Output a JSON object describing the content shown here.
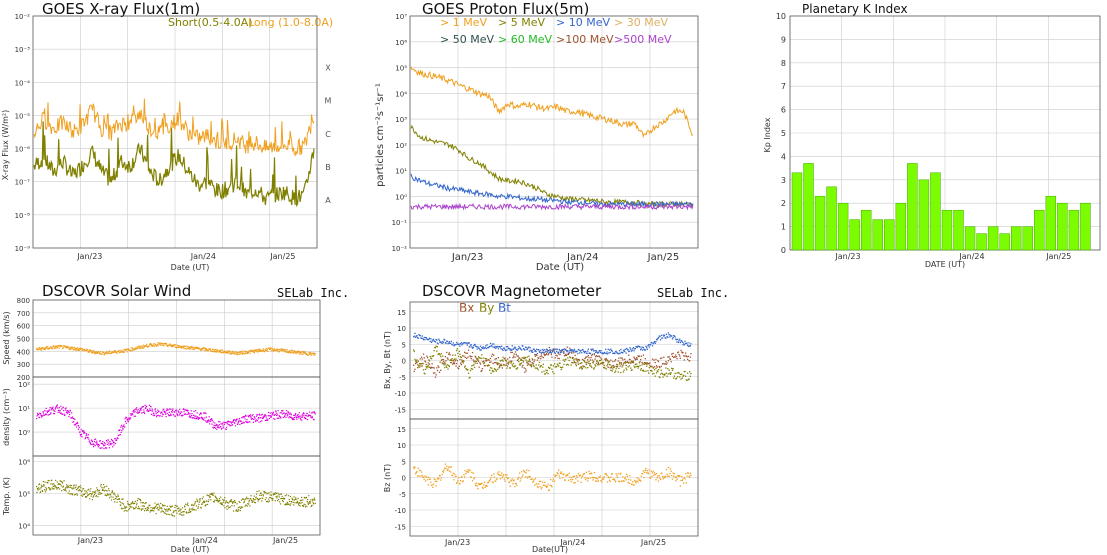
{
  "colors": {
    "orange": "#f0a020",
    "olive": "#808000",
    "blue": "#3366cc",
    "green": "#22bb22",
    "brown": "#a0522d",
    "magenta": "#dd00dd",
    "violet": "#aa44cc",
    "lightorange": "#e0b060",
    "darkslate": "#2f4f4f",
    "kp_bar": "#7cfc00",
    "kp_bar_edge": "#44aa00"
  },
  "xray": {
    "title": "GOES X-ray Flux(1m)",
    "ylabel": "X-ray Flux (W/m²)",
    "xlabel": "Date (UT)",
    "legend_short": "Short(0.5-4.0A)",
    "legend_long": "Long (1.0-8.0A)",
    "class_labels": [
      "X",
      "M",
      "C",
      "B",
      "A"
    ]
  },
  "proton": {
    "title": "GOES Proton Flux(5m)",
    "ylabel": "particles cm⁻²s⁻¹sr⁻¹",
    "xlabel": "Date (UT)",
    "legend": [
      {
        "label": "> 1 MeV",
        "color": "orange"
      },
      {
        "label": "> 5 MeV",
        "color": "olive"
      },
      {
        "label": "> 10 MeV",
        "color": "blue"
      },
      {
        "label": "> 30 MeV",
        "color": "lightorange"
      },
      {
        "label": "> 50 MeV",
        "color": "darkslate"
      },
      {
        "label": "> 60 MeV",
        "color": "green"
      },
      {
        "label": ">100 MeV",
        "color": "brown"
      },
      {
        "label": ">500 MeV",
        "color": "violet"
      }
    ]
  },
  "kp": {
    "title": "Planetary K Index",
    "ylabel": "Kp Index",
    "xlabel": "DATE (UT)"
  },
  "wind": {
    "title": "DSCOVR Solar Wind",
    "brand": "SELab Inc.",
    "speed_label": "Speed (km/s)",
    "density_label": "density (cm⁻³)",
    "temp_label": "Temp. (K)",
    "xlabel": "Date (UT)"
  },
  "mag": {
    "title": "DSCOVR Magnetometer",
    "brand": "SELab Inc.",
    "legend_bx": "Bx",
    "legend_by": "By",
    "legend_bt": "Bt",
    "top_label": "Bx, By, Bt (nT)",
    "bottom_label": "Bz (nT)",
    "xlabel": "Date(UT)"
  },
  "chart_data": [
    {
      "type": "line",
      "title": "GOES X-ray Flux(1m)",
      "xlabel": "Date (UT)",
      "ylabel": "X-ray Flux (W/m²)",
      "y_scale": "log",
      "ylim": [
        1e-09,
        0.01
      ],
      "y_ticks": [
        "10⁻⁹",
        "10⁻⁸",
        "10⁻⁷",
        "10⁻⁶",
        "10⁻⁵",
        "10⁻⁴",
        "10⁻³",
        "10⁻²"
      ],
      "x_ticks": [
        "Jan/23",
        "Jan/24",
        "Jan/25"
      ],
      "grid": true,
      "legend_position": "top-right",
      "series": [
        {
          "name": "Short(0.5-4.0A)",
          "color": "olive",
          "values": [
            3e-07,
            5e-07,
            2e-07,
            4e-07,
            1.5e-07,
            3e-07,
            8e-07,
            2e-07,
            1e-07,
            4e-07,
            3e-07,
            1e-06,
            2e-07,
            1e-07,
            3e-07,
            6e-07,
            2e-07,
            8e-08,
            1e-07,
            5e-08,
            6e-08,
            1e-07,
            4e-08,
            6e-08,
            3e-08,
            4e-08,
            5e-08,
            3e-08,
            4e-08,
            1e-06
          ]
        },
        {
          "name": "Long (1.0-8.0A)",
          "color": "orange",
          "values": [
            3e-06,
            8e-06,
            4e-06,
            6e-06,
            3e-06,
            5e-06,
            1.5e-05,
            4e-06,
            3e-06,
            6e-06,
            5e-06,
            1.2e-05,
            4e-06,
            3e-06,
            5e-06,
            8e-06,
            3e-06,
            2e-06,
            2.5e-06,
            1.5e-06,
            1.5e-06,
            2e-06,
            1.2e-06,
            1.5e-06,
            1e-06,
            1.2e-06,
            1.3e-06,
            1e-06,
            1.2e-06,
            1e-05
          ]
        }
      ]
    },
    {
      "type": "line",
      "title": "GOES Proton Flux(5m)",
      "xlabel": "Date (UT)",
      "ylabel": "particles cm⁻²s⁻¹sr⁻¹",
      "y_scale": "log",
      "ylim": [
        0.01,
        10000000.0
      ],
      "y_ticks": [
        "10⁻²",
        "10⁻¹",
        "10⁰",
        "10¹",
        "10²",
        "10³",
        "10⁴",
        "10⁵",
        "10⁶",
        "10⁷"
      ],
      "x_ticks": [
        "Jan/23",
        "Jan/24",
        "Jan/25"
      ],
      "grid": true,
      "series": [
        {
          "name": "> 1 MeV",
          "color": "orange",
          "values": [
            100000.0,
            60000.0,
            50000.0,
            40000.0,
            30000.0,
            20000.0,
            15000.0,
            10000.0,
            8000.0,
            2000.0,
            4000.0,
            3000.0,
            4000.0,
            3000.0,
            2500.0,
            3000.0,
            2000.0,
            2000.0,
            1500.0,
            1200.0,
            1000.0,
            800,
            600,
            700,
            200,
            500,
            800,
            2000.0,
            2000.0,
            250
          ]
        },
        {
          "name": "> 5 MeV",
          "color": "olive",
          "values": [
            500,
            200,
            150,
            120,
            100,
            60,
            30,
            20,
            10,
            5,
            4,
            4,
            3,
            2,
            1.2,
            1,
            0.8,
            0.8,
            0.7,
            0.7,
            0.6,
            0.6,
            0.6,
            0.6,
            0.5,
            0.5,
            0.5,
            0.5,
            0.5,
            0.5
          ]
        },
        {
          "name": "> 10 MeV",
          "color": "blue",
          "values": [
            6,
            4,
            3,
            2.5,
            2,
            1.8,
            1.5,
            1.3,
            1.2,
            1,
            1,
            0.9,
            0.8,
            0.8,
            0.7,
            0.7,
            0.6,
            0.6,
            0.6,
            0.5,
            0.5,
            0.5,
            0.5,
            0.5,
            0.5,
            0.5,
            0.5,
            0.5,
            0.5,
            0.5
          ]
        },
        {
          "name": ">500 MeV",
          "color": "violet",
          "values": [
            0.4,
            0.4,
            0.4,
            0.4,
            0.4,
            0.4,
            0.4,
            0.4,
            0.4,
            0.4,
            0.4,
            0.4,
            0.4,
            0.4,
            0.4,
            0.4,
            0.4,
            0.4,
            0.4,
            0.4,
            0.4,
            0.4,
            0.4,
            0.4,
            0.4,
            0.4,
            0.4,
            0.4,
            0.4,
            0.4
          ]
        }
      ]
    },
    {
      "type": "bar",
      "title": "Planetary K Index",
      "xlabel": "DATE (UT)",
      "ylabel": "Kp Index",
      "ylim": [
        0,
        10
      ],
      "y_ticks": [
        0,
        1,
        2,
        3,
        4,
        5,
        6,
        7,
        8,
        9,
        10
      ],
      "x_ticks": [
        "Jan/23",
        "Jan/24",
        "Jan/25"
      ],
      "grid": true,
      "values": [
        3.3,
        3.7,
        2.3,
        2.7,
        2.0,
        1.3,
        1.7,
        1.3,
        1.3,
        2.0,
        3.7,
        3.0,
        3.3,
        1.7,
        1.7,
        1.0,
        0.7,
        1.0,
        0.7,
        1.0,
        1.0,
        1.7,
        2.3,
        2.0,
        1.7,
        2.0
      ]
    },
    {
      "type": "scatter",
      "title": "DSCOVR Solar Wind",
      "xlabel": "Date (UT)",
      "x_ticks": [
        "Jan/23",
        "Jan/24",
        "Jan/25"
      ],
      "panels": [
        {
          "ylabel": "Speed (km/s)",
          "ylim": [
            200,
            800
          ],
          "y_ticks": [
            200,
            300,
            400,
            500,
            600,
            700,
            800
          ],
          "color": "orange",
          "values": [
            420,
            430,
            440,
            430,
            420,
            400,
            390,
            400,
            410,
            430,
            450,
            460,
            450,
            440,
            430,
            420,
            410,
            400,
            390,
            400,
            410,
            420,
            410,
            400,
            390,
            380
          ]
        },
        {
          "ylabel": "density (cm⁻³)",
          "y_scale": "log",
          "ylim": [
            0.1,
            200
          ],
          "y_ticks": [
            "10⁰",
            "10¹",
            "10²"
          ],
          "color": "magenta",
          "values": [
            5,
            8,
            10,
            6,
            1,
            0.4,
            0.3,
            0.4,
            3,
            8,
            10,
            6,
            7,
            7,
            6,
            5,
            2,
            2,
            3,
            4,
            4,
            5,
            6,
            5,
            5,
            5
          ]
        },
        {
          "ylabel": "Temp. (K)",
          "y_scale": "log",
          "ylim": [
            5000,
            1500000
          ],
          "y_ticks": [
            "10⁴",
            "10⁵",
            "10⁶"
          ],
          "color": "olive",
          "values": [
            150000,
            180000,
            200000,
            150000,
            120000,
            100000,
            150000,
            80000,
            40000,
            50000,
            40000,
            35000,
            30000,
            30000,
            40000,
            60000,
            80000,
            50000,
            40000,
            60000,
            90000,
            80000,
            70000,
            60000,
            60000,
            60000
          ]
        }
      ]
    },
    {
      "type": "scatter",
      "title": "DSCOVR Magnetometer",
      "xlabel": "Date(UT)",
      "x_ticks": [
        "Jan/23",
        "Jan/24",
        "Jan/25"
      ],
      "panels": [
        {
          "ylabel": "Bx, By, Bt (nT)",
          "ylim": [
            -18,
            18
          ],
          "y_ticks": [
            -15,
            -10,
            -5,
            0,
            5,
            10,
            15
          ],
          "series": [
            {
              "name": "Bx",
              "color": "brown",
              "values": [
                -2,
                1,
                -4,
                2,
                -1,
                3,
                -2,
                1,
                -1,
                2,
                -2,
                1,
                3,
                2,
                3,
                -1,
                1,
                0,
                -1,
                0,
                1,
                0,
                -1,
                1,
                2,
                1
              ]
            },
            {
              "name": "By",
              "color": "olive",
              "values": [
                2,
                -3,
                4,
                -2,
                3,
                -4,
                2,
                -3,
                0,
                -2,
                1,
                -1,
                -3,
                -2,
                0,
                -1,
                -1,
                -1,
                -2,
                -2,
                -1,
                -2,
                -4,
                -3,
                -5,
                -4
              ]
            },
            {
              "name": "Bt",
              "color": "blue",
              "values": [
                8,
                7,
                6,
                6,
                5,
                5,
                4,
                5,
                4,
                4,
                4,
                3,
                3,
                3,
                3,
                3,
                3,
                3,
                3,
                3,
                4,
                4,
                7,
                8,
                6,
                5
              ]
            }
          ]
        },
        {
          "ylabel": "Bz (nT)",
          "ylim": [
            -18,
            18
          ],
          "y_ticks": [
            -15,
            -10,
            -5,
            0,
            5,
            10,
            15
          ],
          "color": "orange",
          "values": [
            3,
            0,
            -2,
            4,
            -1,
            2,
            -3,
            0,
            1,
            -2,
            2,
            -1,
            -3,
            1,
            0,
            0,
            1,
            0,
            0,
            0,
            -1,
            2,
            0,
            2,
            -1,
            1
          ]
        }
      ]
    }
  ]
}
